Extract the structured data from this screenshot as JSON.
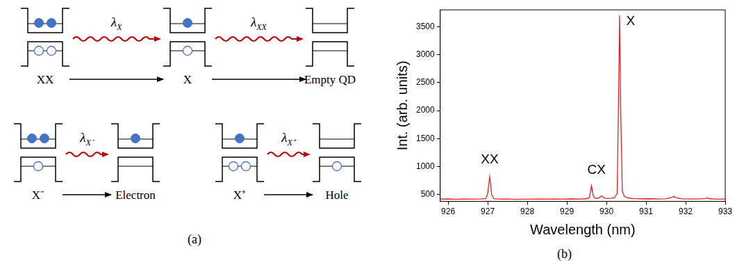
{
  "diagram": {
    "panel_label": "(a)",
    "rows": [
      {
        "states": [
          {
            "label": "XX",
            "electrons": 2,
            "holes": 2
          },
          {
            "label": "X",
            "electrons": 1,
            "holes": 1
          },
          {
            "label": "Empty QD",
            "electrons": 0,
            "holes": 0
          }
        ],
        "transitions": [
          {
            "from": 0,
            "to": 1,
            "symbol": "λ",
            "subscript": "X"
          },
          {
            "from": 1,
            "to": 2,
            "symbol": "λ",
            "subscript": "XX"
          }
        ]
      },
      {
        "states": [
          {
            "label": "X⁻",
            "electrons": 2,
            "holes": 1
          },
          {
            "label": "Electron",
            "electrons": 1,
            "holes": 0
          },
          {
            "label": "X⁺",
            "electrons": 1,
            "holes": 2
          },
          {
            "label": "Hole",
            "electrons": 0,
            "holes": 1
          }
        ],
        "transitions": [
          {
            "from": 0,
            "to": 1,
            "symbol": "λ",
            "subscript": "X⁻"
          },
          {
            "from": 2,
            "to": 3,
            "symbol": "λ",
            "subscript": "X⁺"
          }
        ]
      }
    ]
  },
  "chart_data": {
    "panel_label": "(b)",
    "type": "line",
    "x_label": "Wavelength (nm)",
    "y_label": "Int. (arb. units)",
    "color": "#ee1c1c",
    "grid": false,
    "x": [
      925.8,
      926.0,
      926.2,
      926.4,
      926.6,
      926.8,
      926.95,
      927.0,
      927.05,
      927.1,
      927.15,
      927.3,
      927.5,
      927.7,
      927.9,
      928.1,
      928.3,
      928.5,
      928.7,
      928.9,
      929.1,
      929.3,
      929.5,
      929.57,
      929.62,
      929.67,
      929.72,
      929.8,
      929.88,
      929.93,
      930.0,
      930.1,
      930.2,
      930.27,
      930.31,
      930.33,
      930.36,
      930.4,
      930.45,
      930.55,
      930.7,
      930.9,
      931.1,
      931.3,
      931.5,
      931.65,
      931.7,
      931.75,
      931.9,
      932.1,
      932.3,
      932.5,
      932.55,
      932.6,
      932.8,
      933.0
    ],
    "values": [
      420,
      425,
      418,
      422,
      420,
      424,
      430,
      520,
      820,
      500,
      428,
      420,
      423,
      418,
      421,
      420,
      424,
      419,
      422,
      420,
      425,
      421,
      428,
      450,
      660,
      470,
      432,
      440,
      480,
      445,
      432,
      436,
      445,
      520,
      2400,
      3700,
      2000,
      560,
      470,
      440,
      430,
      425,
      428,
      422,
      426,
      450,
      470,
      448,
      425,
      422,
      424,
      430,
      445,
      428,
      420,
      422
    ],
    "xlim": [
      925.8,
      933
    ],
    "xticks": [
      926,
      927,
      928,
      929,
      930,
      931,
      932,
      933
    ],
    "ylim": [
      380,
      3800
    ],
    "yticks": [
      500,
      1000,
      1500,
      2000,
      2500,
      3000,
      3500
    ],
    "annotations": [
      {
        "text": "XX",
        "x": 927.05,
        "y": 1000
      },
      {
        "text": "CX",
        "x": 929.75,
        "y": 820
      },
      {
        "text": "X",
        "x": 930.5,
        "y": 3480
      }
    ]
  }
}
